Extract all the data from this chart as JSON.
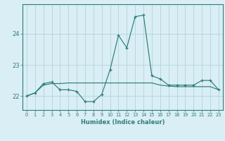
{
  "x": [
    0,
    1,
    2,
    3,
    4,
    5,
    6,
    7,
    8,
    9,
    10,
    11,
    12,
    13,
    14,
    15,
    16,
    17,
    18,
    19,
    20,
    21,
    22,
    23
  ],
  "y_spiky": [
    22.0,
    22.1,
    22.4,
    22.45,
    22.2,
    22.2,
    22.15,
    21.82,
    21.82,
    22.05,
    22.85,
    23.95,
    23.55,
    24.55,
    24.6,
    22.65,
    22.55,
    22.35,
    22.35,
    22.35,
    22.35,
    22.5,
    22.5,
    22.2
  ],
  "y_smooth": [
    22.0,
    22.1,
    22.35,
    22.4,
    22.4,
    22.42,
    22.42,
    22.42,
    22.42,
    22.42,
    22.42,
    22.42,
    22.42,
    22.42,
    22.42,
    22.42,
    22.35,
    22.32,
    22.3,
    22.3,
    22.3,
    22.3,
    22.3,
    22.2
  ],
  "line_color": "#2d7d78",
  "bg_color": "#daeef5",
  "grid_color": "#b0d4dc",
  "xlabel": "Humidex (Indice chaleur)",
  "ylim": [
    21.55,
    24.95
  ],
  "xlim": [
    -0.5,
    23.5
  ],
  "yticks": [
    22,
    23,
    24
  ],
  "xticks": [
    0,
    1,
    2,
    3,
    4,
    5,
    6,
    7,
    8,
    9,
    10,
    11,
    12,
    13,
    14,
    15,
    16,
    17,
    18,
    19,
    20,
    21,
    22,
    23
  ]
}
